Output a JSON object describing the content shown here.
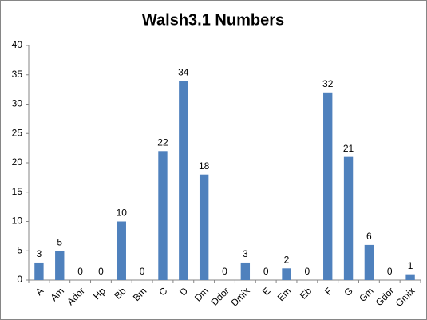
{
  "chart_data": {
    "type": "bar",
    "title": "Walsh3.1 Numbers",
    "categories": [
      "A",
      "Am",
      "Ador",
      "Hp",
      "Bb",
      "Bm",
      "C",
      "D",
      "Dm",
      "Ddor",
      "Dmix",
      "E",
      "Em",
      "Eb",
      "F",
      "G",
      "Gm",
      "Gdor",
      "Gmix"
    ],
    "values": [
      3,
      5,
      0,
      0,
      10,
      0,
      22,
      34,
      18,
      0,
      3,
      0,
      2,
      0,
      32,
      21,
      6,
      0,
      1
    ],
    "color": "#4f81bd",
    "ylim": [
      0,
      40
    ],
    "yticks": [
      0,
      5,
      10,
      15,
      20,
      25,
      30,
      35,
      40
    ],
    "grid": false,
    "data_labels": true
  }
}
